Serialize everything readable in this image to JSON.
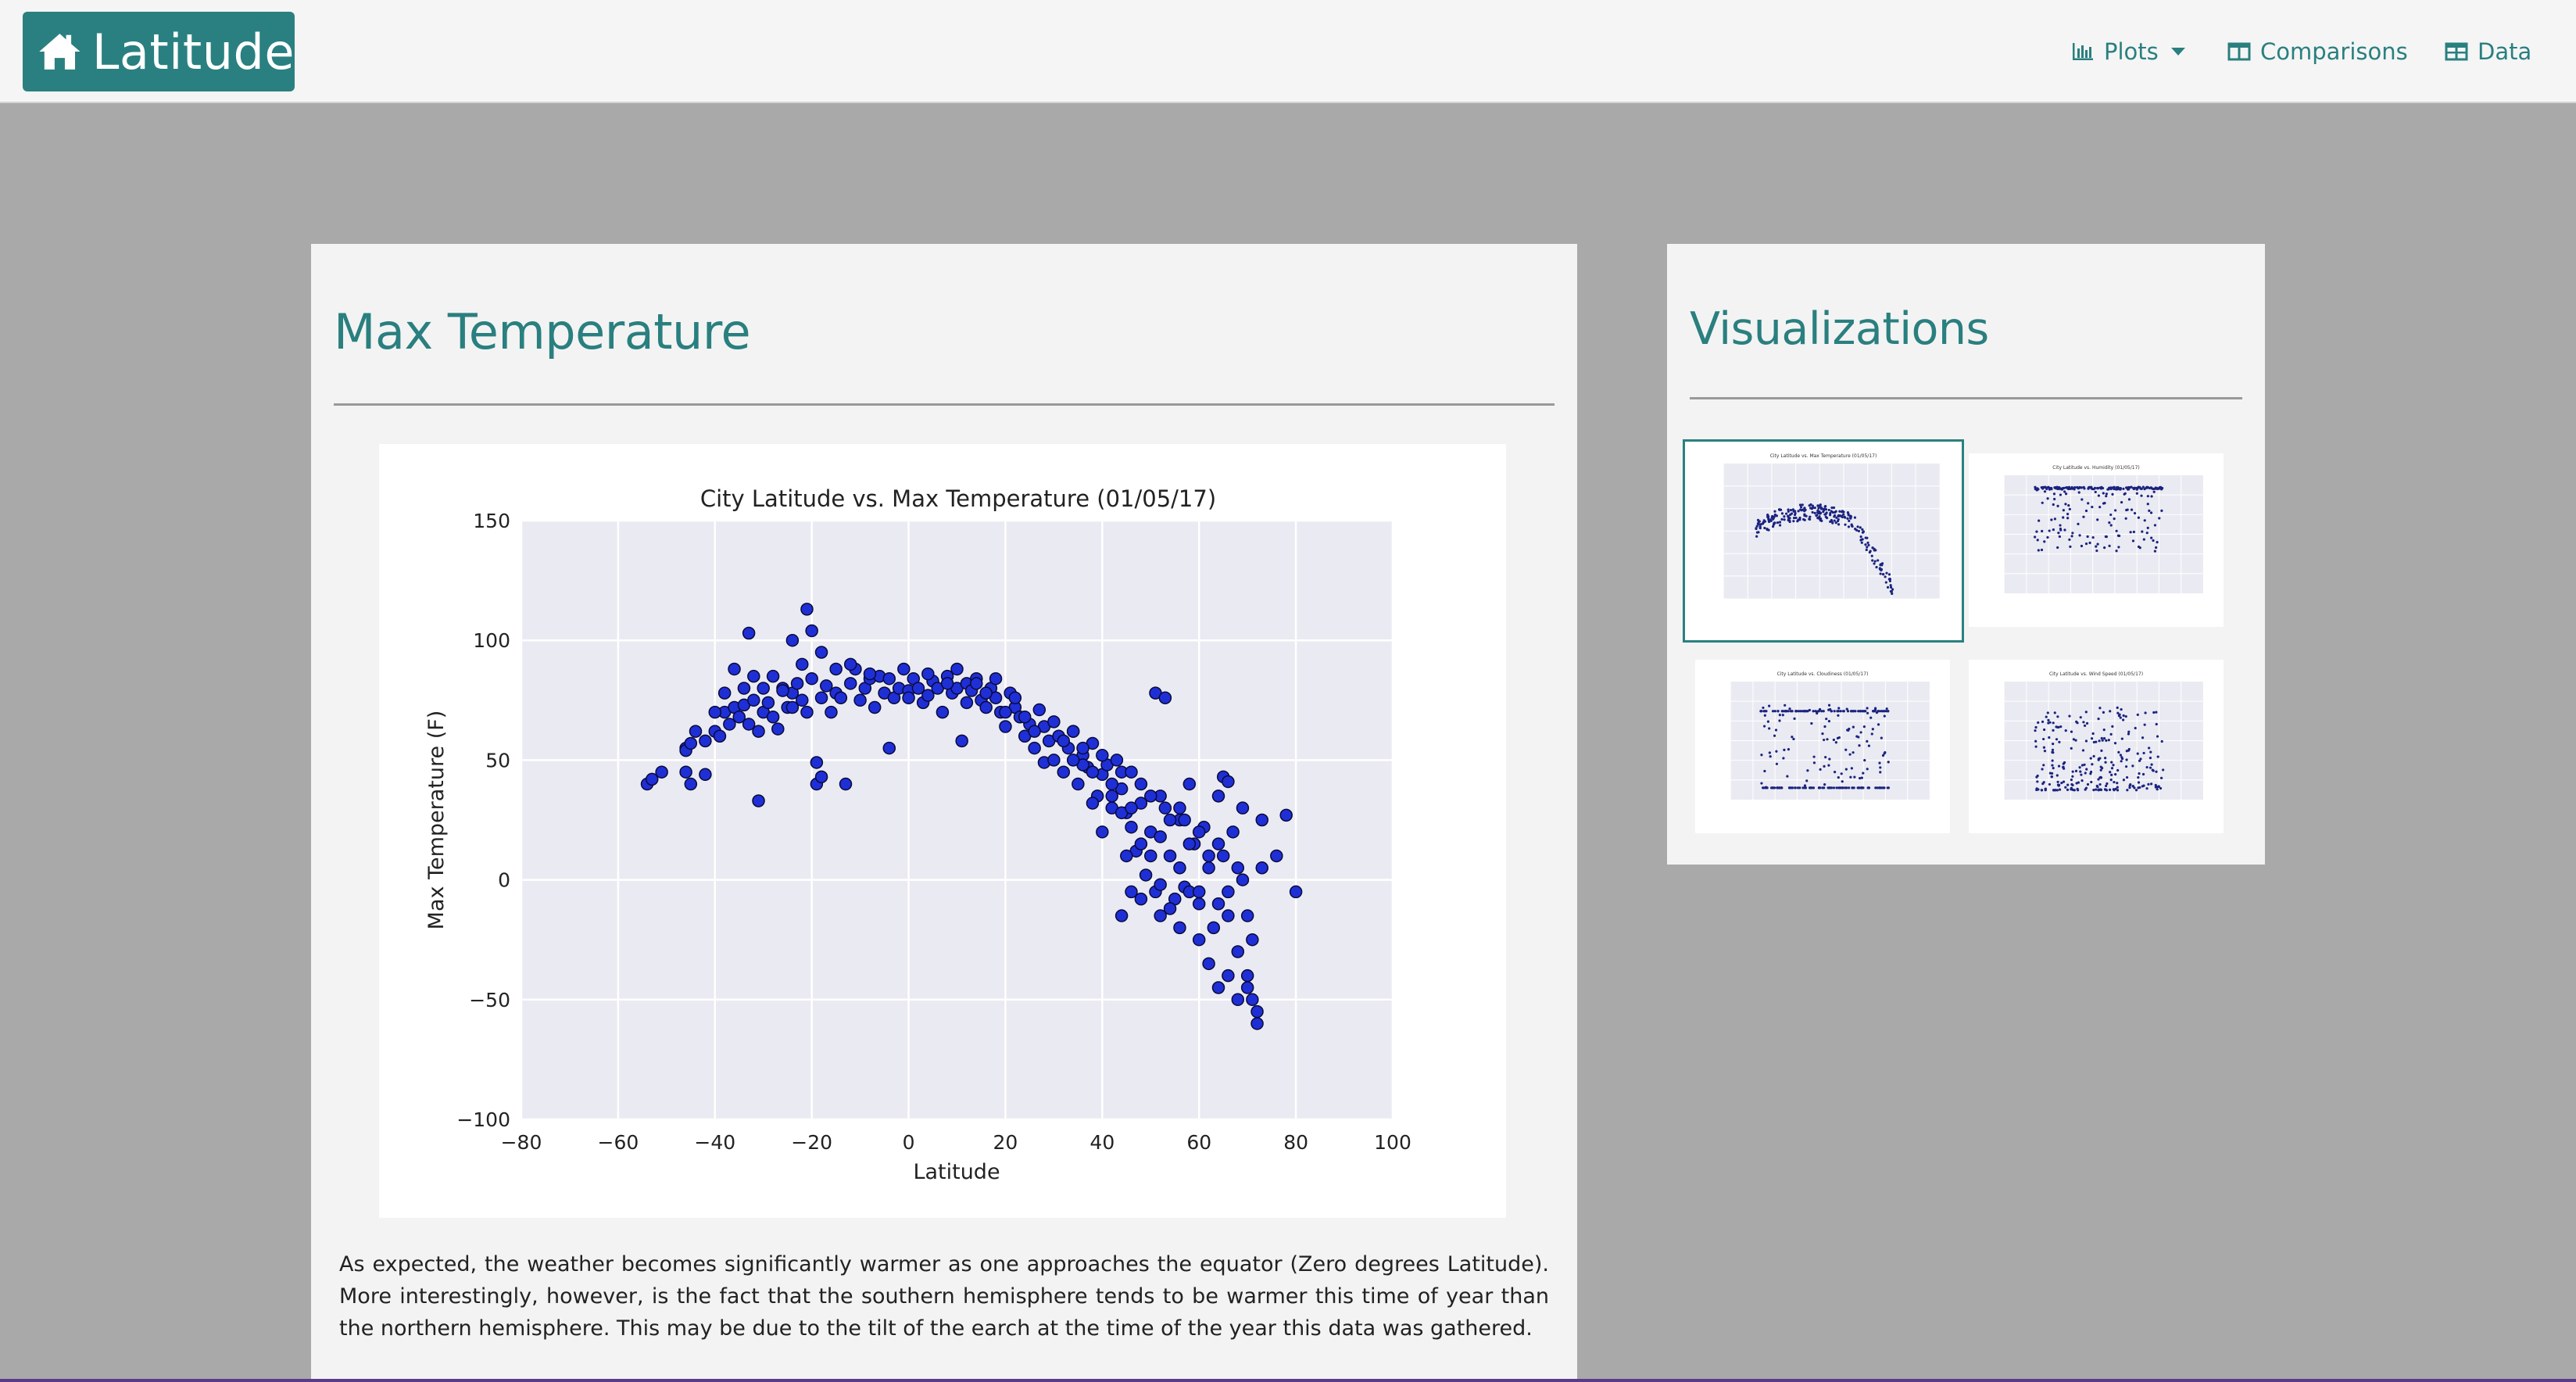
{
  "brand": {
    "label": "Latitude",
    "color": "#2a8080"
  },
  "nav": {
    "plots_label": "Plots",
    "comparisons_label": "Comparisons",
    "data_label": "Data"
  },
  "main": {
    "title": "Max Temperature",
    "description": "As expected, the weather becomes significantly warmer as one approaches the equator (Zero degrees Latitude). More interestingly, however, is the fact that the southern hemisphere tends to be warmer this time of year than the northern hemisphere. This may be due to the tilt of the earch at the time of the year this data was gathered."
  },
  "sidebar": {
    "title": "Visualizations",
    "thumbnails": [
      {
        "name": "thumb-max-temperature",
        "title": "City Latitude vs. Max Temperature (01/05/17)",
        "active": true
      },
      {
        "name": "thumb-humidity",
        "title": "City Latitude vs. Humidity (01/05/17)",
        "active": false
      },
      {
        "name": "thumb-cloudiness",
        "title": "City Latitude vs. Cloudiness (01/05/17)",
        "active": false
      },
      {
        "name": "thumb-wind-speed",
        "title": "City Latitude vs. Wind Speed (01/05/17)",
        "active": false
      }
    ]
  },
  "colors": {
    "accent": "#2a7f7f",
    "point": "#1f2fd6",
    "plot_bg": "#eaeaf2",
    "page_bg": "#a9a9a9"
  },
  "chart_data": {
    "type": "scatter",
    "title": "City Latitude vs. Max Temperature (01/05/17)",
    "xlabel": "Latitude",
    "ylabel": "Max Temperature (F)",
    "xlim": [
      -80,
      100
    ],
    "ylim": [
      -100,
      150
    ],
    "xticks": [
      "−80",
      "−60",
      "−40",
      "−20",
      "0",
      "20",
      "40",
      "60",
      "80",
      "100"
    ],
    "yticks": [
      "150",
      "100",
      "50",
      "0",
      "−50",
      "−100"
    ],
    "grid": true,
    "points": [
      [
        -54,
        40
      ],
      [
        -53,
        42
      ],
      [
        -51,
        45
      ],
      [
        -46,
        55
      ],
      [
        -46,
        54
      ],
      [
        -45,
        57
      ],
      [
        -46,
        45
      ],
      [
        -45,
        40
      ],
      [
        -42,
        44
      ],
      [
        -42,
        58
      ],
      [
        -40,
        62
      ],
      [
        -39,
        60
      ],
      [
        -38,
        70
      ],
      [
        -37,
        65
      ],
      [
        -36,
        72
      ],
      [
        -35,
        68
      ],
      [
        -34,
        73
      ],
      [
        -33,
        103
      ],
      [
        -33,
        65
      ],
      [
        -32,
        75
      ],
      [
        -31,
        62
      ],
      [
        -31,
        33
      ],
      [
        -30,
        70
      ],
      [
        -29,
        74
      ],
      [
        -28,
        68
      ],
      [
        -27,
        63
      ],
      [
        -26,
        80
      ],
      [
        -25,
        72
      ],
      [
        -24,
        78
      ],
      [
        -24,
        100
      ],
      [
        -23,
        82
      ],
      [
        -22,
        75
      ],
      [
        -21,
        113
      ],
      [
        -21,
        70
      ],
      [
        -20,
        84
      ],
      [
        -20,
        104
      ],
      [
        -19,
        49
      ],
      [
        -19,
        40
      ],
      [
        -18,
        43
      ],
      [
        -18,
        76
      ],
      [
        -17,
        81
      ],
      [
        -16,
        70
      ],
      [
        -15,
        78
      ],
      [
        -14,
        76
      ],
      [
        -13,
        40
      ],
      [
        -12,
        82
      ],
      [
        -11,
        88
      ],
      [
        -10,
        75
      ],
      [
        -9,
        80
      ],
      [
        -8,
        84
      ],
      [
        -7,
        72
      ],
      [
        -6,
        85
      ],
      [
        -5,
        78
      ],
      [
        -4,
        55
      ],
      [
        -3,
        76
      ],
      [
        -2,
        80
      ],
      [
        -1,
        88
      ],
      [
        0,
        79
      ],
      [
        1,
        84
      ],
      [
        2,
        80
      ],
      [
        3,
        74
      ],
      [
        4,
        77
      ],
      [
        5,
        83
      ],
      [
        6,
        80
      ],
      [
        7,
        70
      ],
      [
        8,
        85
      ],
      [
        9,
        78
      ],
      [
        10,
        80
      ],
      [
        11,
        58
      ],
      [
        12,
        82
      ],
      [
        13,
        79
      ],
      [
        14,
        84
      ],
      [
        15,
        75
      ],
      [
        16,
        72
      ],
      [
        17,
        80
      ],
      [
        18,
        76
      ],
      [
        19,
        70
      ],
      [
        20,
        64
      ],
      [
        21,
        78
      ],
      [
        22,
        72
      ],
      [
        23,
        68
      ],
      [
        24,
        60
      ],
      [
        25,
        65
      ],
      [
        26,
        55
      ],
      [
        27,
        71
      ],
      [
        28,
        49
      ],
      [
        29,
        58
      ],
      [
        30,
        50
      ],
      [
        31,
        60
      ],
      [
        32,
        45
      ],
      [
        33,
        55
      ],
      [
        34,
        62
      ],
      [
        35,
        40
      ],
      [
        36,
        52
      ],
      [
        37,
        47
      ],
      [
        38,
        57
      ],
      [
        39,
        35
      ],
      [
        40,
        44
      ],
      [
        41,
        48
      ],
      [
        42,
        30
      ],
      [
        43,
        50
      ],
      [
        44,
        38
      ],
      [
        45,
        28
      ],
      [
        46,
        22
      ],
      [
        47,
        12
      ],
      [
        48,
        32
      ],
      [
        49,
        2
      ],
      [
        50,
        20
      ],
      [
        51,
        -5
      ],
      [
        52,
        18
      ],
      [
        53,
        30
      ],
      [
        54,
        10
      ],
      [
        55,
        -8
      ],
      [
        56,
        25
      ],
      [
        57,
        -3
      ],
      [
        58,
        40
      ],
      [
        59,
        15
      ],
      [
        60,
        -10
      ],
      [
        61,
        22
      ],
      [
        62,
        5
      ],
      [
        63,
        -20
      ],
      [
        64,
        35
      ],
      [
        65,
        10
      ],
      [
        66,
        -15
      ],
      [
        67,
        20
      ],
      [
        68,
        -30
      ],
      [
        69,
        0
      ],
      [
        70,
        -40
      ],
      [
        71,
        -50
      ],
      [
        72,
        -60
      ],
      [
        73,
        25
      ],
      [
        76,
        10
      ],
      [
        78,
        27
      ],
      [
        80,
        -5
      ],
      [
        34,
        62
      ],
      [
        36,
        48
      ],
      [
        38,
        32
      ],
      [
        40,
        20
      ],
      [
        42,
        40
      ],
      [
        44,
        28
      ],
      [
        46,
        30
      ],
      [
        48,
        15
      ],
      [
        50,
        10
      ],
      [
        52,
        -2
      ],
      [
        54,
        -12
      ],
      [
        56,
        5
      ],
      [
        58,
        -5
      ],
      [
        60,
        -25
      ],
      [
        62,
        -35
      ],
      [
        64,
        -45
      ],
      [
        66,
        -40
      ],
      [
        68,
        -50
      ],
      [
        70,
        -45
      ],
      [
        72,
        -55
      ],
      [
        -30,
        80
      ],
      [
        -28,
        85
      ],
      [
        -26,
        79
      ],
      [
        -22,
        90
      ],
      [
        -18,
        95
      ],
      [
        -15,
        88
      ],
      [
        -12,
        90
      ],
      [
        -8,
        86
      ],
      [
        -4,
        84
      ],
      [
        0,
        76
      ],
      [
        4,
        86
      ],
      [
        8,
        82
      ],
      [
        12,
        74
      ],
      [
        16,
        78
      ],
      [
        20,
        70
      ],
      [
        24,
        68
      ],
      [
        28,
        64
      ],
      [
        32,
        58
      ],
      [
        36,
        55
      ],
      [
        40,
        52
      ],
      [
        44,
        45
      ],
      [
        48,
        40
      ],
      [
        52,
        35
      ],
      [
        56,
        30
      ],
      [
        60,
        20
      ],
      [
        64,
        15
      ],
      [
        68,
        5
      ],
      [
        -36,
        88
      ],
      [
        -34,
        80
      ],
      [
        -32,
        85
      ],
      [
        -44,
        62
      ],
      [
        -40,
        70
      ],
      [
        -38,
        78
      ],
      [
        -24,
        72
      ],
      [
        10,
        88
      ],
      [
        14,
        82
      ],
      [
        18,
        84
      ],
      [
        22,
        76
      ],
      [
        26,
        62
      ],
      [
        30,
        66
      ],
      [
        34,
        50
      ],
      [
        38,
        45
      ],
      [
        42,
        35
      ],
      [
        46,
        45
      ],
      [
        50,
        35
      ],
      [
        54,
        25
      ],
      [
        58,
        15
      ],
      [
        62,
        10
      ],
      [
        66,
        -5
      ],
      [
        70,
        -15
      ],
      [
        45,
        10
      ],
      [
        48,
        -8
      ],
      [
        52,
        -15
      ],
      [
        56,
        -20
      ],
      [
        60,
        -5
      ],
      [
        64,
        -10
      ],
      [
        51,
        78
      ],
      [
        53,
        76
      ],
      [
        57,
        25
      ],
      [
        65,
        43
      ],
      [
        66,
        41
      ],
      [
        69,
        30
      ],
      [
        71,
        -25
      ],
      [
        73,
        5
      ],
      [
        44,
        -15
      ],
      [
        46,
        -5
      ]
    ]
  }
}
